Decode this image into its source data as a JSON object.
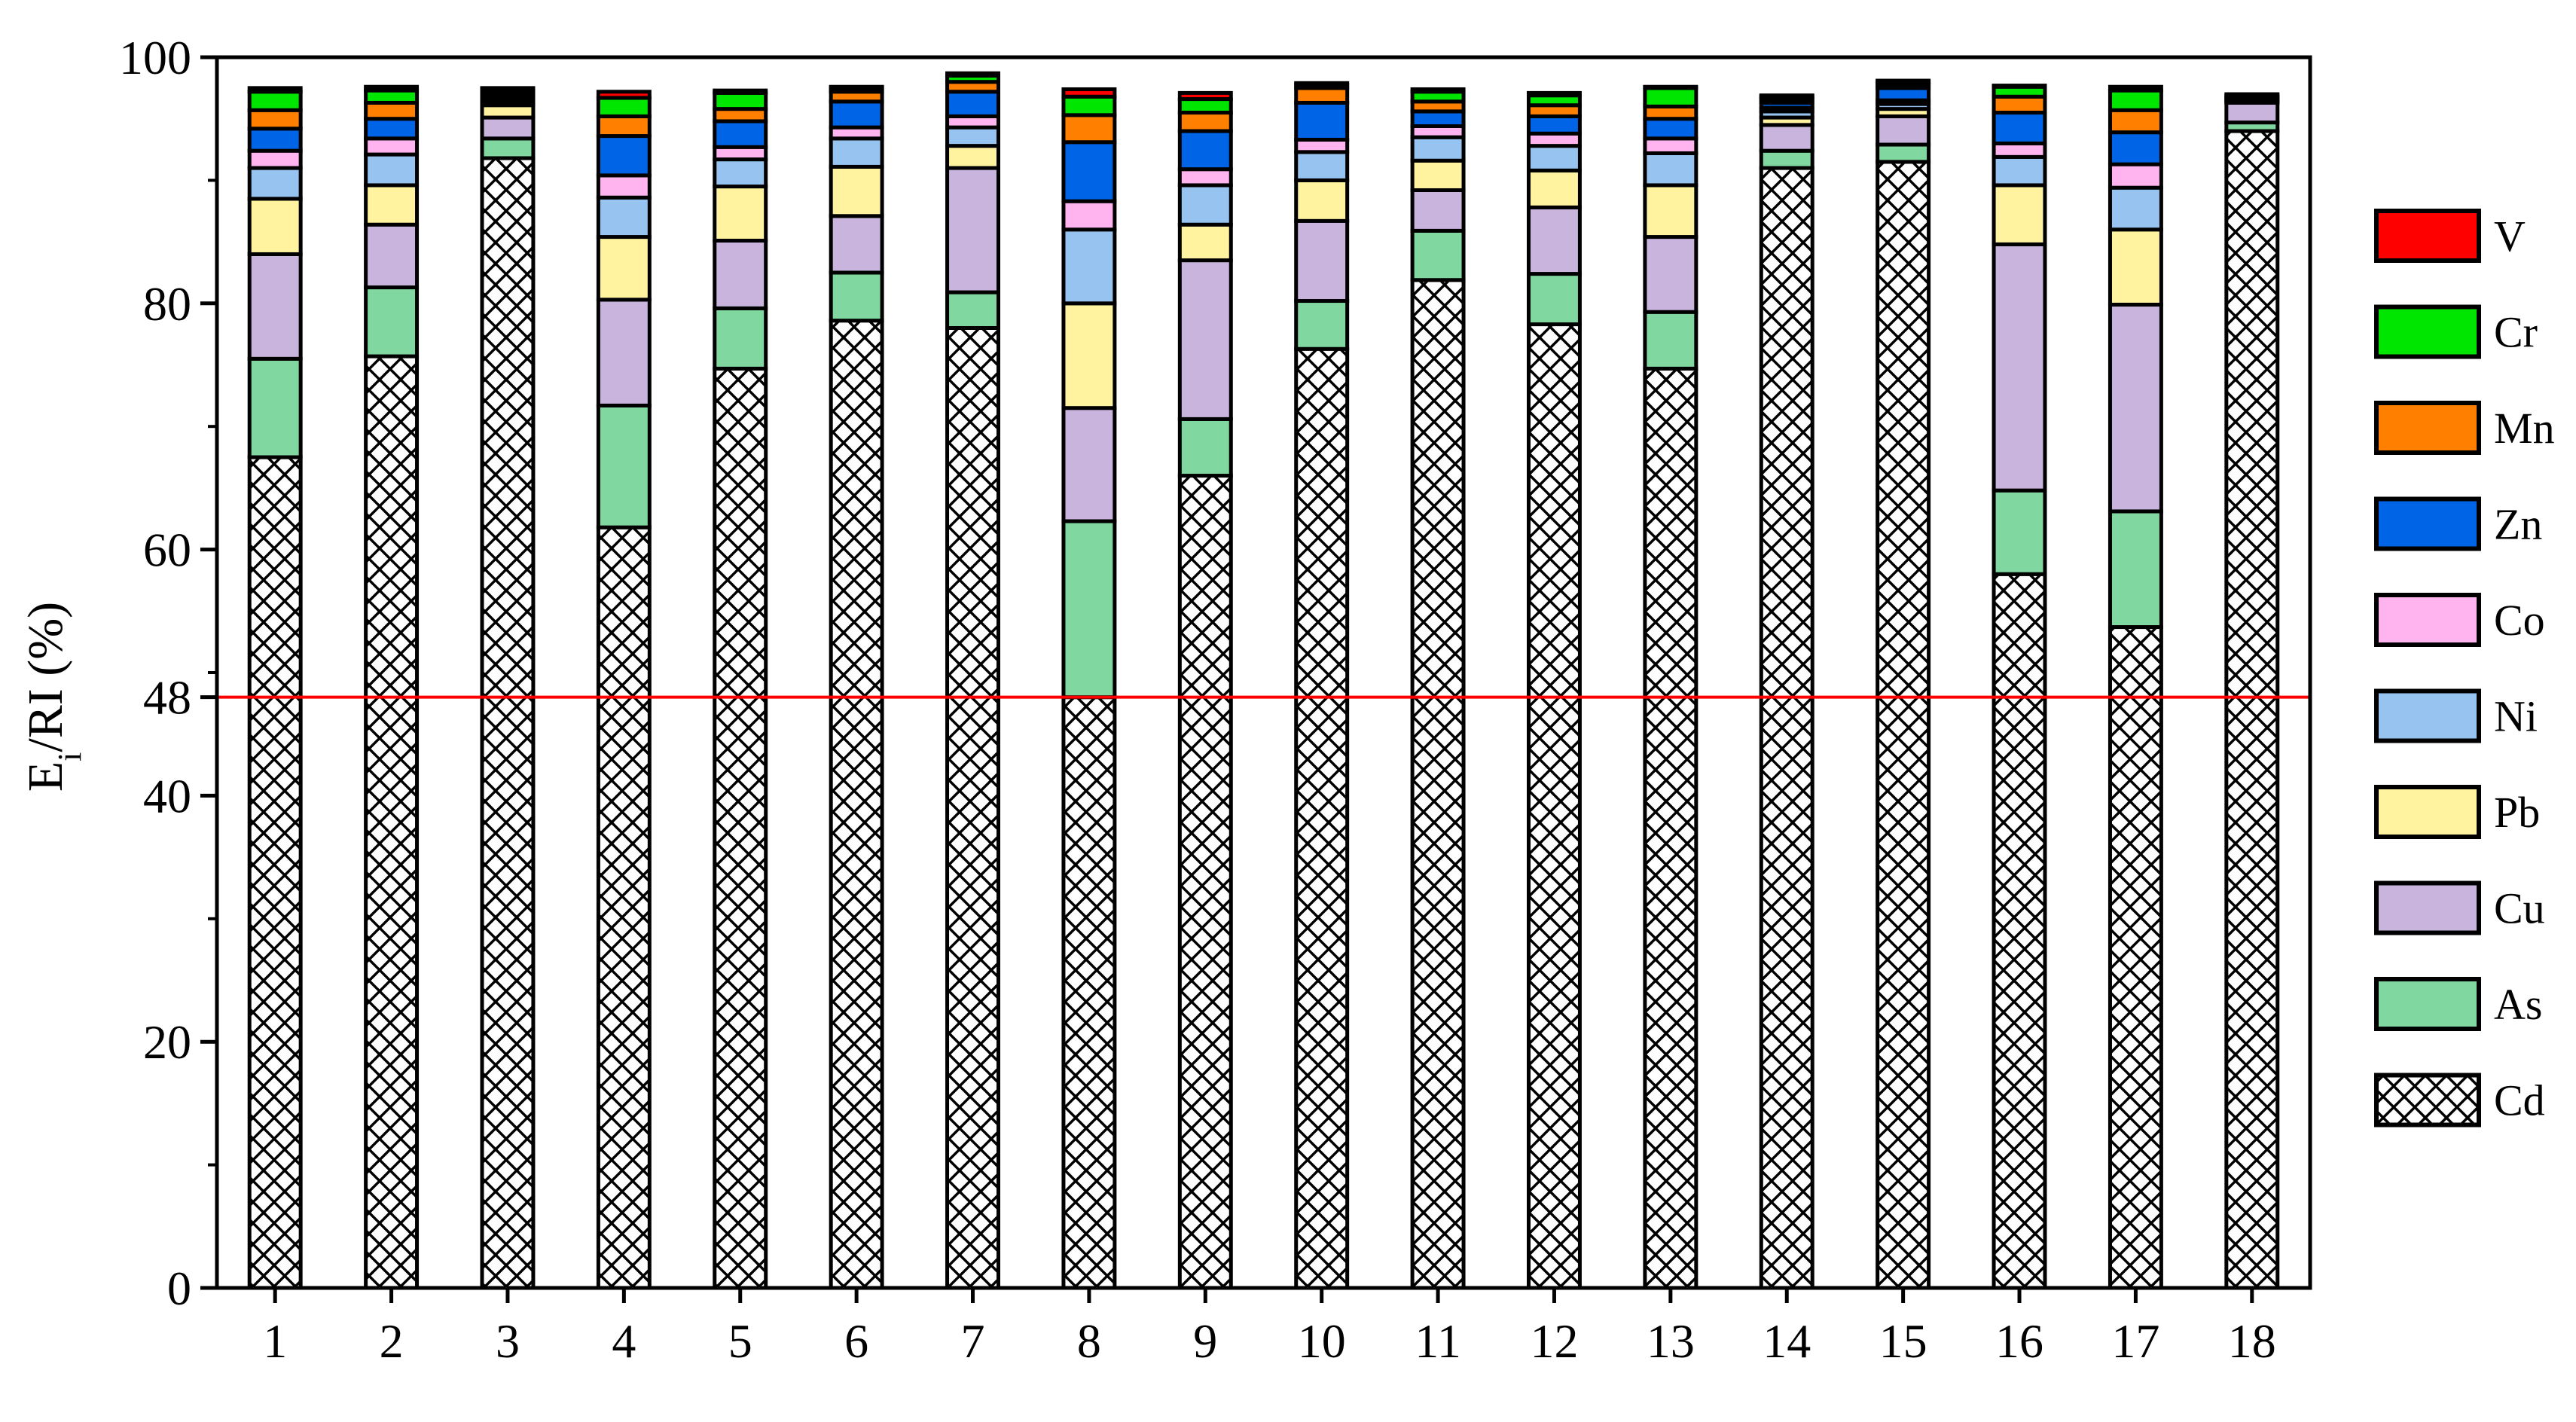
{
  "chart_data": {
    "type": "bar",
    "stacked": true,
    "unit": "percent",
    "ylabel": {
      "main": "E",
      "sub": "i",
      "rest": "/RI (%)"
    },
    "xlabel": "",
    "title": "",
    "categories": [
      "1",
      "2",
      "3",
      "4",
      "5",
      "6",
      "7",
      "8",
      "9",
      "10",
      "11",
      "12",
      "13",
      "14",
      "15",
      "16",
      "17",
      "18"
    ],
    "ylim": [
      0,
      100
    ],
    "yticks": [
      0,
      20,
      40,
      48,
      60,
      80,
      100
    ],
    "reference_line": {
      "y": 48,
      "color": "#ff0000"
    },
    "legend_position": "right",
    "series": [
      {
        "name": "Cd",
        "color": "#ffffff",
        "pattern": "crosshatch",
        "values": [
          67.5,
          75.7,
          91.8,
          61.8,
          74.7,
          78.6,
          78.0,
          48.0,
          66.0,
          76.3,
          81.9,
          78.3,
          74.7,
          91.0,
          91.5,
          58.0,
          53.7,
          94.0
        ]
      },
      {
        "name": "As",
        "color": "#80d8a0",
        "values": [
          8.0,
          5.6,
          1.6,
          9.9,
          4.9,
          3.9,
          2.9,
          14.3,
          4.6,
          3.9,
          4.0,
          4.1,
          4.6,
          1.4,
          1.4,
          6.8,
          9.4,
          0.7
        ]
      },
      {
        "name": "Cu",
        "color": "#c8b4dc",
        "values": [
          8.5,
          5.1,
          1.7,
          8.6,
          5.5,
          4.6,
          10.1,
          9.2,
          12.9,
          6.5,
          3.3,
          5.4,
          6.1,
          2.1,
          2.3,
          20.0,
          16.8,
          1.6
        ]
      },
      {
        "name": "Pb",
        "color": "#fff3a0",
        "values": [
          4.5,
          3.2,
          1.0,
          5.1,
          4.4,
          4.0,
          1.8,
          8.5,
          2.9,
          3.3,
          2.4,
          3.0,
          4.2,
          0.6,
          0.6,
          4.8,
          6.1,
          0.1
        ]
      },
      {
        "name": "Ni",
        "color": "#96c3f0",
        "values": [
          2.5,
          2.5,
          0.3,
          3.2,
          2.2,
          2.3,
          1.5,
          6.0,
          3.2,
          2.3,
          1.9,
          2.0,
          2.6,
          0.5,
          0.4,
          2.3,
          3.4,
          0.1
        ]
      },
      {
        "name": "Co",
        "color": "#ffb4ef",
        "values": [
          1.4,
          1.3,
          0.2,
          1.8,
          1.0,
          0.9,
          0.9,
          2.3,
          1.3,
          1.0,
          0.9,
          1.0,
          1.2,
          0.3,
          0.3,
          1.1,
          1.9,
          0.1
        ]
      },
      {
        "name": "Zn",
        "color": "#0064e6",
        "values": [
          1.8,
          1.6,
          0.3,
          3.2,
          2.1,
          2.1,
          2.0,
          4.8,
          3.1,
          3.0,
          1.2,
          1.4,
          1.6,
          0.4,
          1.0,
          2.5,
          2.6,
          0.1
        ]
      },
      {
        "name": "Mn",
        "color": "#ff7f00",
        "values": [
          1.5,
          1.3,
          0.3,
          1.6,
          1.0,
          0.8,
          0.8,
          2.2,
          1.5,
          1.2,
          0.8,
          0.9,
          1.0,
          0.3,
          0.3,
          1.3,
          1.8,
          0.1
        ]
      },
      {
        "name": "Cr",
        "color": "#00e600",
        "values": [
          1.5,
          1.0,
          0.2,
          1.5,
          1.3,
          0.3,
          0.5,
          1.5,
          1.1,
          0.3,
          0.8,
          0.8,
          1.5,
          0.2,
          0.2,
          0.8,
          1.6,
          0.1
        ]
      },
      {
        "name": "V",
        "color": "#ff0000",
        "values": [
          0.3,
          0.3,
          0.1,
          0.5,
          0.2,
          0.1,
          0.2,
          0.6,
          0.5,
          0.1,
          0.2,
          0.2,
          0.1,
          0.1,
          0.1,
          0.1,
          0.3,
          0.1
        ]
      }
    ]
  }
}
